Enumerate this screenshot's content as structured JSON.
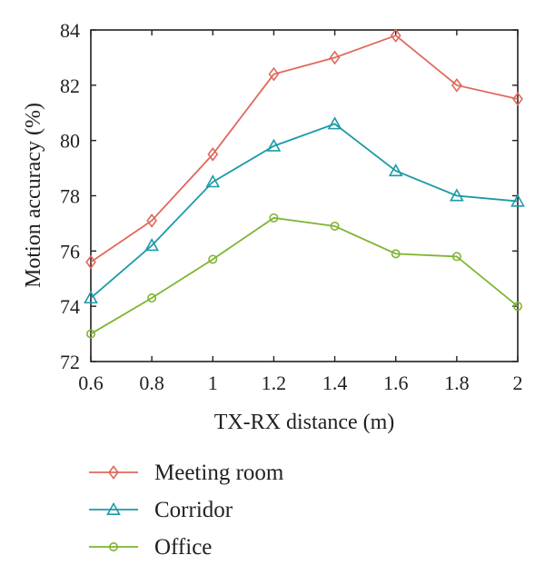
{
  "chart_data": {
    "type": "line",
    "xlabel": "TX-RX distance (m)",
    "ylabel": "Motion accuracy (%)",
    "xlim": [
      0.6,
      2.0
    ],
    "ylim": [
      72,
      84
    ],
    "x": [
      0.6,
      0.8,
      1.0,
      1.2,
      1.4,
      1.6,
      1.8,
      2.0
    ],
    "x_tick_labels": [
      "0.6",
      "0.8",
      "1",
      "1.2",
      "1.4",
      "1.6",
      "1.8",
      "2"
    ],
    "y_ticks": [
      72,
      74,
      76,
      78,
      80,
      82,
      84
    ],
    "y_tick_labels": [
      "72",
      "74",
      "76",
      "78",
      "80",
      "82",
      "84"
    ],
    "grid": false,
    "legend_position": "bottom, below plot",
    "series": [
      {
        "name": "Meeting room",
        "marker": "diamond",
        "color": "#e0685b",
        "values": [
          75.6,
          77.1,
          79.5,
          82.4,
          83.0,
          83.8,
          82.0,
          81.5
        ]
      },
      {
        "name": "Corridor",
        "marker": "triangle",
        "color": "#1b9aa7",
        "values": [
          74.3,
          76.2,
          78.5,
          79.8,
          80.6,
          78.9,
          78.0,
          77.8
        ]
      },
      {
        "name": "Office",
        "marker": "circle",
        "color": "#7fb532",
        "values": [
          73.0,
          74.3,
          75.7,
          77.2,
          76.9,
          75.9,
          75.8,
          74.0
        ]
      }
    ]
  }
}
